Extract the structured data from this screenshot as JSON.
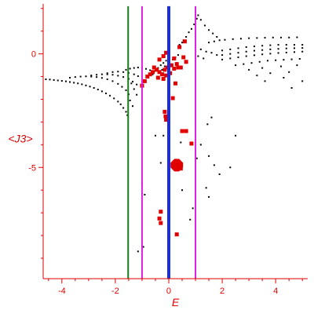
{
  "chart_data": {
    "type": "scatter",
    "title": "",
    "xlabel": "E",
    "ylabel": "<J3>",
    "xlim": [
      -4.7,
      5.2
    ],
    "ylim": [
      -9.9,
      2.2
    ],
    "grid": false,
    "axis_color": "#e00000",
    "x_ticks": [
      -4,
      -2,
      0,
      2,
      4
    ],
    "y_ticks": [
      0,
      -5
    ],
    "vertical_lines": [
      {
        "x": -1.52,
        "color": "#1a7a1a"
      },
      {
        "x": -1.0,
        "color": "#e020e0"
      },
      {
        "x": 0.0,
        "color": "#1a2ee0"
      },
      {
        "x": 1.0,
        "color": "#e020e0"
      }
    ],
    "series": [
      {
        "marker": "dot",
        "color": "#000000",
        "points": [
          [
            -4.6,
            -1.12
          ],
          [
            -4.45,
            -1.13
          ],
          [
            -4.3,
            -1.15
          ],
          [
            -4.15,
            -1.17
          ],
          [
            -4.0,
            -1.19
          ],
          [
            -3.85,
            -1.21
          ],
          [
            -3.7,
            -1.24
          ],
          [
            -3.55,
            -1.27
          ],
          [
            -3.4,
            -1.3
          ],
          [
            -3.25,
            -1.34
          ],
          [
            -3.1,
            -1.39
          ],
          [
            -2.95,
            -1.44
          ],
          [
            -2.8,
            -1.5
          ],
          [
            -2.65,
            -1.57
          ],
          [
            -2.5,
            -1.65
          ],
          [
            -2.35,
            -1.74
          ],
          [
            -2.2,
            -1.84
          ],
          [
            -2.05,
            -1.96
          ],
          [
            -1.9,
            -2.1
          ],
          [
            -1.8,
            -2.22
          ],
          [
            -1.7,
            -2.38
          ],
          [
            -1.6,
            -2.55
          ],
          [
            -1.55,
            -2.7
          ],
          [
            -3.7,
            -1.05
          ],
          [
            -3.5,
            -1.02
          ],
          [
            -3.3,
            -1.0
          ],
          [
            -3.1,
            -0.99
          ],
          [
            -2.9,
            -1.0
          ],
          [
            -2.7,
            -1.02
          ],
          [
            -2.5,
            -1.06
          ],
          [
            -2.3,
            -1.12
          ],
          [
            -2.1,
            -1.2
          ],
          [
            -1.9,
            -1.32
          ],
          [
            -1.75,
            -1.45
          ],
          [
            -1.6,
            -1.6
          ],
          [
            -1.5,
            -1.78
          ],
          [
            -2.9,
            -0.95
          ],
          [
            -2.7,
            -0.92
          ],
          [
            -2.5,
            -0.9
          ],
          [
            -2.3,
            -0.9
          ],
          [
            -2.1,
            -0.92
          ],
          [
            -1.9,
            -0.96
          ],
          [
            -1.7,
            -1.02
          ],
          [
            -1.5,
            -1.1
          ],
          [
            -1.35,
            -1.22
          ],
          [
            -1.2,
            -1.35
          ],
          [
            -2.3,
            -0.85
          ],
          [
            -2.1,
            -0.8
          ],
          [
            -1.9,
            -0.78
          ],
          [
            -1.7,
            -0.8
          ],
          [
            -1.5,
            -0.84
          ],
          [
            -1.3,
            -0.9
          ],
          [
            -1.15,
            -0.98
          ],
          [
            -1.6,
            -0.7
          ],
          [
            -1.45,
            -0.65
          ],
          [
            -1.3,
            -0.62
          ],
          [
            -1.15,
            -0.6
          ],
          [
            -1.0,
            -0.62
          ],
          [
            -0.85,
            -0.66
          ],
          [
            -0.7,
            -0.72
          ],
          [
            -1.4,
            -1.3
          ],
          [
            -1.3,
            -1.55
          ],
          [
            -1.2,
            -1.8
          ],
          [
            -1.45,
            -2.05
          ],
          [
            -1.35,
            -2.3
          ],
          [
            -0.6,
            -0.9
          ],
          [
            -0.5,
            -0.75
          ],
          [
            -0.4,
            -0.62
          ],
          [
            -0.3,
            -0.5
          ],
          [
            -0.2,
            -0.4
          ],
          [
            -0.1,
            -0.3
          ],
          [
            0.05,
            -0.55
          ],
          [
            0.15,
            -0.25
          ],
          [
            0.25,
            -0.15
          ],
          [
            0.35,
            -0.05
          ],
          [
            -0.25,
            -0.7
          ],
          [
            -0.15,
            -0.55
          ],
          [
            0.3,
            -0.4
          ],
          [
            0.4,
            0.4
          ],
          [
            0.5,
            0.5
          ],
          [
            0.55,
            0.6
          ],
          [
            0.65,
            0.75
          ],
          [
            0.75,
            0.95
          ],
          [
            0.85,
            1.1
          ],
          [
            0.95,
            1.3
          ],
          [
            1.05,
            1.55
          ],
          [
            1.1,
            1.7
          ],
          [
            1.2,
            1.5
          ],
          [
            1.35,
            1.25
          ],
          [
            1.5,
            1.05
          ],
          [
            1.65,
            0.9
          ],
          [
            1.8,
            0.75
          ],
          [
            2.0,
            0.15
          ],
          [
            2.3,
            0.2
          ],
          [
            2.6,
            0.25
          ],
          [
            2.9,
            0.3
          ],
          [
            3.2,
            0.33
          ],
          [
            3.5,
            0.36
          ],
          [
            3.8,
            0.38
          ],
          [
            4.1,
            0.4
          ],
          [
            4.4,
            0.4
          ],
          [
            4.7,
            0.4
          ],
          [
            5.0,
            0.4
          ],
          [
            2.0,
            -0.05
          ],
          [
            2.3,
            0.0
          ],
          [
            2.6,
            0.05
          ],
          [
            2.9,
            0.1
          ],
          [
            3.2,
            0.14
          ],
          [
            3.5,
            0.17
          ],
          [
            3.8,
            0.2
          ],
          [
            4.1,
            0.22
          ],
          [
            4.4,
            0.24
          ],
          [
            4.7,
            0.25
          ],
          [
            5.0,
            0.26
          ],
          [
            2.0,
            -0.25
          ],
          [
            2.3,
            -0.2
          ],
          [
            2.6,
            -0.15
          ],
          [
            2.9,
            -0.1
          ],
          [
            3.2,
            -0.06
          ],
          [
            3.5,
            -0.02
          ],
          [
            3.8,
            0.01
          ],
          [
            4.1,
            0.04
          ],
          [
            4.4,
            0.06
          ],
          [
            4.7,
            0.08
          ],
          [
            5.0,
            0.1
          ],
          [
            1.5,
            0.5
          ],
          [
            1.7,
            0.55
          ],
          [
            1.9,
            0.6
          ],
          [
            2.1,
            0.62
          ],
          [
            2.4,
            0.65
          ],
          [
            2.7,
            0.67
          ],
          [
            3.0,
            0.69
          ],
          [
            3.3,
            0.7
          ],
          [
            3.6,
            0.71
          ],
          [
            3.9,
            0.72
          ],
          [
            4.2,
            0.72
          ],
          [
            4.5,
            0.72
          ],
          [
            4.8,
            0.73
          ],
          [
            1.2,
            0.2
          ],
          [
            1.4,
            0.1
          ],
          [
            1.6,
            0.05
          ],
          [
            1.8,
            -0.05
          ],
          [
            1.1,
            -0.1
          ],
          [
            1.3,
            -0.2
          ],
          [
            2.5,
            -0.5
          ],
          [
            2.8,
            -0.45
          ],
          [
            3.1,
            -0.4
          ],
          [
            3.4,
            -0.35
          ],
          [
            3.7,
            -0.3
          ],
          [
            4.0,
            -0.28
          ],
          [
            4.3,
            -0.26
          ],
          [
            4.6,
            -0.24
          ],
          [
            4.9,
            -0.22
          ],
          [
            3.0,
            -0.7
          ],
          [
            3.5,
            -0.62
          ],
          [
            4.2,
            -0.55
          ],
          [
            4.8,
            -0.5
          ],
          [
            3.3,
            -0.95
          ],
          [
            3.8,
            -0.85
          ],
          [
            4.5,
            -0.8
          ],
          [
            3.6,
            -1.2
          ],
          [
            4.3,
            -1.05
          ],
          [
            5.0,
            -1.2
          ],
          [
            4.6,
            -1.5
          ],
          [
            1.0,
            -4.2
          ],
          [
            1.05,
            -4.6
          ],
          [
            1.2,
            -4.0
          ],
          [
            1.5,
            -4.5
          ],
          [
            1.7,
            -4.9
          ],
          [
            1.9,
            -5.3
          ],
          [
            2.3,
            -5.0
          ],
          [
            1.4,
            -5.9
          ],
          [
            1.5,
            -6.3
          ],
          [
            1.6,
            -2.8
          ],
          [
            1.45,
            -3.1
          ],
          [
            2.5,
            -3.6
          ],
          [
            -1.0,
            -5.7
          ],
          [
            -0.9,
            -6.2
          ],
          [
            -1.15,
            -8.7
          ],
          [
            -0.95,
            -8.5
          ],
          [
            -0.5,
            -3.6
          ],
          [
            -0.2,
            -3.6
          ],
          [
            0.45,
            -3.9
          ],
          [
            0.9,
            -6.8
          ],
          [
            0.8,
            -7.3
          ],
          [
            0.5,
            -6.0
          ],
          [
            -0.3,
            -4.8
          ]
        ]
      },
      {
        "marker": "square",
        "color": "#e00000",
        "points": [
          [
            -0.55,
            -0.6
          ],
          [
            -0.45,
            -0.7
          ],
          [
            -0.35,
            -0.8
          ],
          [
            -0.25,
            -0.9
          ],
          [
            -0.15,
            -0.7
          ],
          [
            -0.05,
            -0.6
          ],
          [
            0.1,
            -0.5
          ],
          [
            0.2,
            -0.65
          ],
          [
            0.3,
            -0.45
          ],
          [
            0.35,
            -0.6
          ],
          [
            -0.4,
            -1.05
          ],
          [
            -0.2,
            -1.1
          ],
          [
            -0.1,
            -0.95
          ],
          [
            0.05,
            -0.85
          ],
          [
            -0.6,
            -0.8
          ],
          [
            -0.7,
            -0.9
          ],
          [
            -0.8,
            -1.0
          ],
          [
            -0.9,
            -1.2
          ],
          [
            -1.0,
            -1.4
          ],
          [
            -0.35,
            -0.25
          ],
          [
            -0.2,
            -0.1
          ],
          [
            -0.1,
            0.05
          ],
          [
            0.2,
            -0.2
          ],
          [
            0.25,
            -1.3
          ],
          [
            0.4,
            0.3
          ],
          [
            0.6,
            0.55
          ],
          [
            0.55,
            -0.15
          ],
          [
            0.65,
            -0.35
          ],
          [
            0.45,
            -0.6
          ],
          [
            0.15,
            -1.95
          ],
          [
            -0.15,
            -2.55
          ],
          [
            -0.12,
            -2.75
          ],
          [
            -0.1,
            -2.9
          ],
          [
            0.5,
            -3.4
          ],
          [
            0.65,
            -3.4
          ],
          [
            0.85,
            -3.95
          ],
          [
            0.3,
            -4.9
          ],
          [
            0.45,
            -5.05
          ],
          [
            -0.3,
            -6.95
          ],
          [
            -0.35,
            -7.25
          ],
          [
            -0.3,
            -7.45
          ],
          [
            0.3,
            -7.95
          ]
        ]
      }
    ]
  }
}
